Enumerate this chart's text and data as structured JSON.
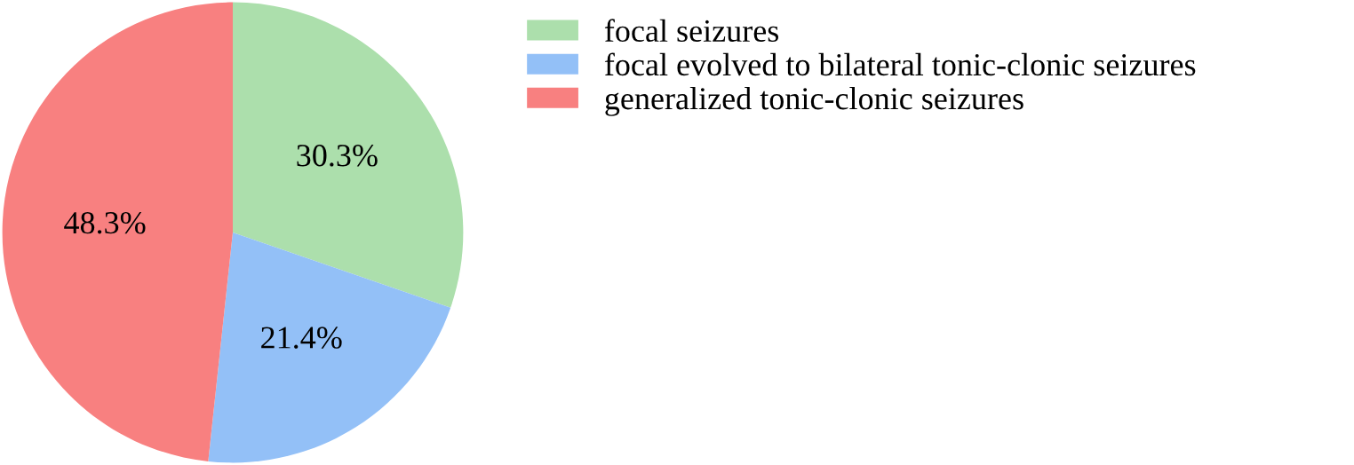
{
  "chart_data": {
    "type": "pie",
    "categories": [
      "focal seizures",
      "focal evolved to bilateral tonic-clonic seizures",
      "generalized tonic-clonic seizures"
    ],
    "values": [
      30.3,
      21.4,
      48.3
    ],
    "colors": [
      "#acdfac",
      "#93c0f7",
      "#f88080"
    ],
    "value_labels": [
      "30.3%",
      "21.4%",
      "48.3%"
    ],
    "legend": "right"
  }
}
